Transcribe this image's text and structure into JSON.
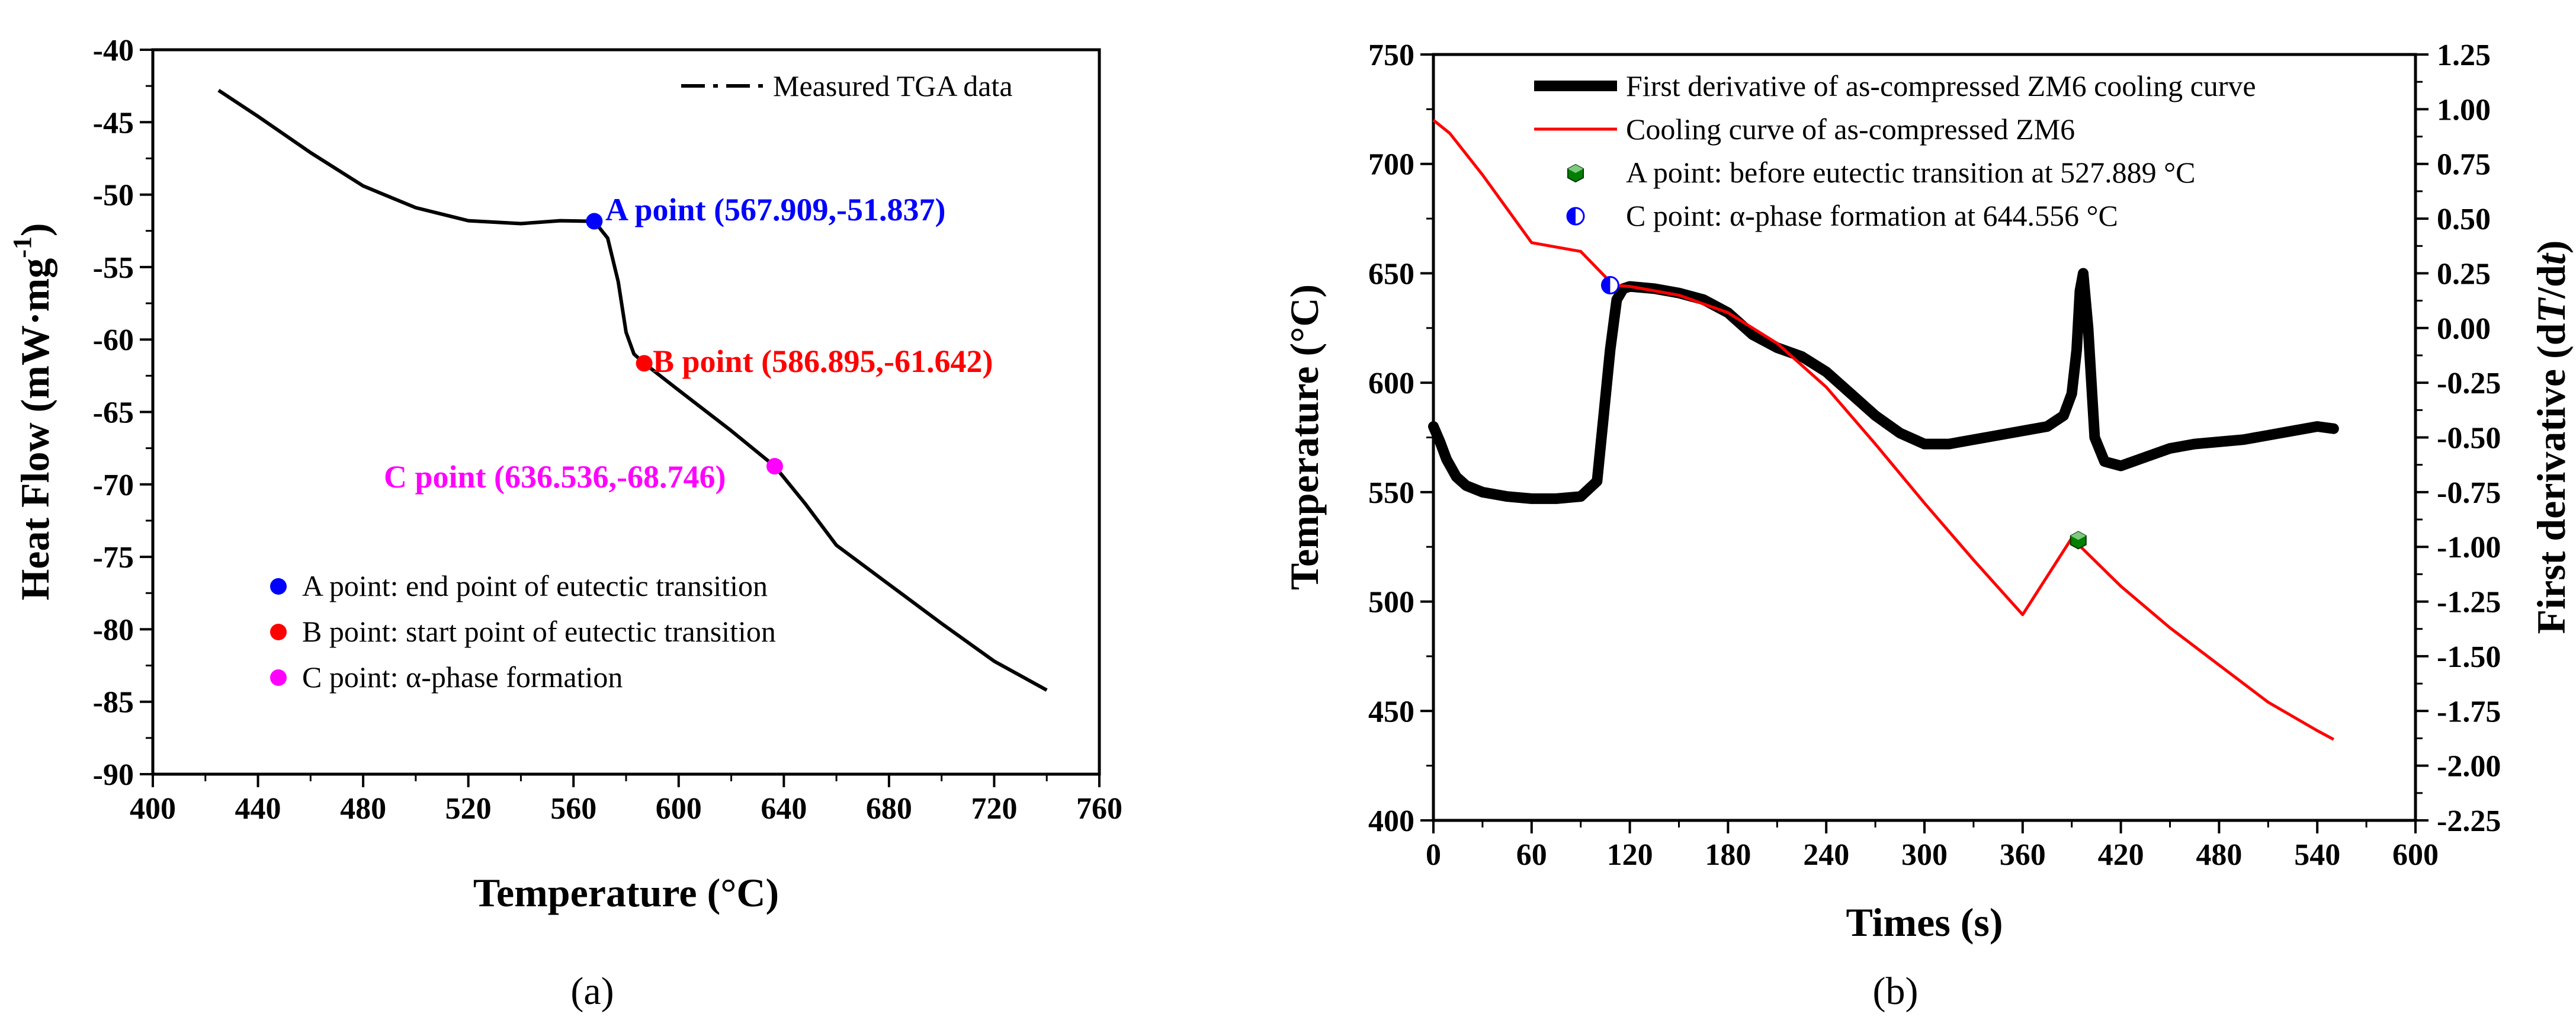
{
  "colors": {
    "a_point": "#0000ff",
    "b_point": "#ff0000",
    "c_point": "#ff00ff",
    "derivative": "#000000",
    "cooling": "#ff0000",
    "b_marker_a": "#008000",
    "b_marker_c": "#0000ff"
  },
  "chart_data": [
    {
      "id": "a",
      "type": "line",
      "caption": "(a)",
      "xlabel": "Temperature (°C)",
      "ylabel": "Heat Flow (mW·mg⁻¹)",
      "ylabel_main": "Heat Flow (mW·mg",
      "ylabel_sup": "-1",
      "ylabel_close": ")",
      "xlim": [
        400,
        760
      ],
      "ylim": [
        -90,
        -40
      ],
      "xticks": [
        400,
        440,
        480,
        520,
        560,
        600,
        640,
        680,
        720,
        760
      ],
      "yticks": [
        -90,
        -85,
        -80,
        -75,
        -70,
        -65,
        -60,
        -55,
        -50,
        -45,
        -40
      ],
      "series": [
        {
          "name": "Measured TGA data",
          "x": [
            425,
            440,
            460,
            480,
            500,
            520,
            540,
            555,
            567.909,
            573,
            577,
            580,
            583,
            586.895,
            600,
            620,
            636.536,
            648,
            660,
            680,
            700,
            720,
            740
          ],
          "y": [
            -42.8,
            -44.6,
            -47.1,
            -49.4,
            -50.9,
            -51.8,
            -52.0,
            -51.8,
            -51.84,
            -53.0,
            -56.0,
            -59.5,
            -61.0,
            -61.64,
            -63.5,
            -66.3,
            -68.75,
            -71.3,
            -74.2,
            -76.9,
            -79.6,
            -82.2,
            -84.2
          ]
        }
      ],
      "legend": "Measured TGA data",
      "points": [
        {
          "name": "A point",
          "label": "A point (567.909,-51.837)",
          "x": 567.909,
          "y": -51.837,
          "legend": "A point: end point of eutectic transition"
        },
        {
          "name": "B point",
          "label": "B point (586.895,-61.642)",
          "x": 586.895,
          "y": -61.642,
          "legend": "B point: start point of eutectic transition"
        },
        {
          "name": "C point",
          "label": "C point (636.536,-68.746)",
          "x": 636.536,
          "y": -68.746,
          "legend": "C point: α-phase formation"
        }
      ]
    },
    {
      "id": "b",
      "type": "line",
      "caption": "(b)",
      "xlabel": "Times (s)",
      "ylabel_left": "Temperature (°C)",
      "ylabel_right": "First derivative (dT/dt)",
      "ylabel_right_pre": "First derivative (d",
      "ylabel_right_T": "T",
      "ylabel_right_mid": "/d",
      "ylabel_right_t": "t",
      "ylabel_right_post": ")",
      "xlim": [
        0,
        600
      ],
      "ylim_left": [
        400,
        750
      ],
      "ylim_right": [
        -2.25,
        1.25
      ],
      "xticks": [
        0,
        60,
        120,
        180,
        240,
        300,
        360,
        420,
        480,
        540,
        600
      ],
      "yticks_left": [
        400,
        450,
        500,
        550,
        600,
        650,
        700,
        750
      ],
      "yticks_right": [
        "1.25",
        "1.00",
        "0.75",
        "0.50",
        "0.25",
        "0.00",
        "-0.25",
        "-0.50",
        "-0.75",
        "-1.00",
        "-1.25",
        "-1.50",
        "-1.75",
        "-2.00",
        "-2.25"
      ],
      "series": [
        {
          "name": "First derivative of as-compressed ZM6 cooling curve",
          "axis": "right",
          "x": [
            0,
            4,
            8,
            14,
            20,
            30,
            45,
            60,
            75,
            90,
            100,
            104,
            108,
            112,
            116,
            120,
            135,
            150,
            165,
            180,
            195,
            210,
            225,
            240,
            255,
            270,
            285,
            300,
            315,
            330,
            345,
            360,
            375,
            385,
            390,
            393,
            395,
            397,
            400,
            404,
            410,
            420,
            435,
            450,
            465,
            480,
            495,
            510,
            525,
            540,
            550
          ],
          "y": [
            -0.45,
            -0.52,
            -0.6,
            -0.68,
            -0.72,
            -0.75,
            -0.77,
            -0.78,
            -0.78,
            -0.77,
            -0.7,
            -0.4,
            -0.1,
            0.13,
            0.18,
            0.19,
            0.18,
            0.16,
            0.13,
            0.07,
            -0.03,
            -0.09,
            -0.13,
            -0.2,
            -0.3,
            -0.4,
            -0.48,
            -0.53,
            -0.53,
            -0.51,
            -0.49,
            -0.47,
            -0.45,
            -0.4,
            -0.3,
            -0.1,
            0.17,
            0.25,
            0.0,
            -0.5,
            -0.61,
            -0.63,
            -0.59,
            -0.55,
            -0.53,
            -0.52,
            -0.51,
            -0.49,
            -0.47,
            -0.45,
            -0.46
          ]
        },
        {
          "name": "Cooling curve of as-compressed ZM6",
          "axis": "left",
          "x": [
            0,
            10,
            30,
            60,
            90,
            110,
            120,
            150,
            180,
            210,
            240,
            270,
            300,
            330,
            360,
            390,
            420,
            450,
            480,
            510,
            540,
            550
          ],
          "y": [
            720,
            714,
            695,
            664,
            660,
            644.556,
            644,
            640,
            632,
            618,
            598,
            572,
            545,
            519,
            494,
            529,
            507,
            488,
            471,
            454,
            441,
            437
          ]
        }
      ],
      "legend": [
        "First derivative of as-compressed ZM6 cooling curve",
        "Cooling curve of as-compressed ZM6",
        "A point: before eutectic transition at 527.889 °C",
        "C point: α-phase formation at 644.556 °C"
      ],
      "points": [
        {
          "name": "A point",
          "x": 394,
          "y": 527.889
        },
        {
          "name": "C point",
          "x": 108,
          "y": 644.556
        }
      ]
    }
  ]
}
